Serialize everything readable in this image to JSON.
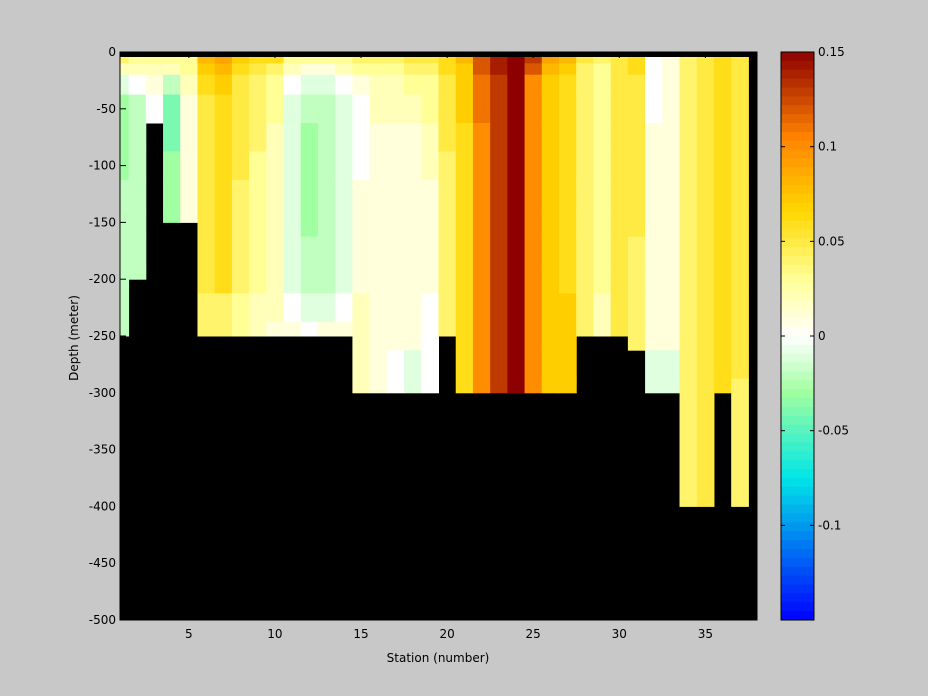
{
  "chart_data": {
    "type": "heatmap",
    "xlabel": "Station (number)",
    "ylabel": "Depth (meter)",
    "xlim": [
      1,
      38
    ],
    "ylim": [
      -500,
      0
    ],
    "xticks": [
      5,
      10,
      15,
      20,
      25,
      30,
      35
    ],
    "yticks": [
      0,
      -50,
      -100,
      -150,
      -200,
      -250,
      -300,
      -350,
      -400,
      -450,
      -500
    ],
    "depth_bins": [
      -5,
      -15,
      -25,
      -50,
      -75,
      -100,
      -125,
      -150,
      -175,
      -200,
      -225,
      -250,
      -275,
      -300,
      -325,
      -350,
      -375,
      -400
    ],
    "colorbar": {
      "clim": [
        -0.15,
        0.15
      ],
      "ticks": [
        0.15,
        0.1,
        0.05,
        0,
        -0.05,
        -0.1
      ],
      "colormap": "blue-cyan-white-yellow-red"
    },
    "bathymetry_color": "#000000",
    "bottom_depth_by_station": [
      -250,
      -200,
      -75,
      -150,
      -150,
      -250,
      -250,
      -250,
      -250,
      -250,
      -250,
      -250,
      -250,
      -250,
      -300,
      -300,
      -300,
      -300,
      -300,
      -250,
      -300,
      -300,
      -300,
      -300,
      -300,
      -300,
      -300,
      -250,
      -250,
      -250,
      -300,
      -300,
      -300,
      -400,
      -400,
      -300,
      -400
    ],
    "values_by_station": [
      [
        0.04,
        0.02,
        -0.01,
        -0.03,
        -0.03,
        -0.03,
        -0.02,
        -0.02,
        -0.02,
        -0.02,
        -0.02,
        -0.02
      ],
      [
        0.03,
        0.02,
        0.0,
        -0.02,
        -0.02,
        -0.02,
        -0.02,
        -0.02,
        -0.02,
        -0.02,
        -0.02
      ],
      [
        0.03,
        0.02,
        0.01,
        0.0
      ],
      [
        0.03,
        0.02,
        -0.02,
        -0.04,
        -0.04,
        -0.03,
        -0.03,
        -0.03
      ],
      [
        0.03,
        0.03,
        0.02,
        0.01,
        0.01,
        0.01,
        0.01,
        0.01
      ],
      [
        0.08,
        0.07,
        0.06,
        0.05,
        0.05,
        0.05,
        0.05,
        0.05,
        0.05,
        0.05,
        0.04,
        0.04
      ],
      [
        0.09,
        0.08,
        0.07,
        0.06,
        0.06,
        0.06,
        0.06,
        0.06,
        0.06,
        0.06,
        0.04,
        0.04
      ],
      [
        0.07,
        0.06,
        0.05,
        0.05,
        0.05,
        0.05,
        0.04,
        0.04,
        0.04,
        0.04,
        0.03,
        0.03
      ],
      [
        0.06,
        0.05,
        0.04,
        0.04,
        0.04,
        0.03,
        0.03,
        0.03,
        0.03,
        0.03,
        0.02,
        0.02
      ],
      [
        0.06,
        0.04,
        0.03,
        0.03,
        0.02,
        0.02,
        0.02,
        0.02,
        0.02,
        0.02,
        0.02,
        0.01
      ],
      [
        0.03,
        0.02,
        0.0,
        -0.01,
        -0.01,
        -0.01,
        -0.01,
        -0.01,
        -0.01,
        -0.01,
        0.0,
        0.01
      ],
      [
        0.03,
        0.01,
        -0.01,
        -0.02,
        -0.03,
        -0.03,
        -0.03,
        -0.03,
        -0.02,
        -0.02,
        -0.01,
        0.0
      ],
      [
        0.03,
        0.01,
        -0.01,
        -0.02,
        -0.02,
        -0.02,
        -0.02,
        -0.02,
        -0.02,
        -0.02,
        -0.01,
        0.01
      ],
      [
        0.03,
        0.02,
        0.0,
        -0.01,
        -0.01,
        -0.01,
        -0.01,
        -0.01,
        -0.01,
        -0.01,
        0.0,
        0.01
      ],
      [
        0.04,
        0.03,
        0.01,
        0.0,
        0.0,
        0.0,
        0.01,
        0.01,
        0.01,
        0.01,
        0.02,
        0.02,
        0.02,
        0.02
      ],
      [
        0.04,
        0.03,
        0.02,
        0.02,
        0.01,
        0.01,
        0.01,
        0.01,
        0.01,
        0.01,
        0.01,
        0.01,
        0.01,
        0.01
      ],
      [
        0.04,
        0.03,
        0.02,
        0.02,
        0.01,
        0.01,
        0.01,
        0.01,
        0.01,
        0.01,
        0.01,
        0.01,
        0.0,
        0.0
      ],
      [
        0.05,
        0.04,
        0.03,
        0.02,
        0.01,
        0.01,
        0.01,
        0.01,
        0.01,
        0.01,
        0.01,
        0.01,
        -0.01,
        -0.01
      ],
      [
        0.05,
        0.04,
        0.03,
        0.03,
        0.02,
        0.02,
        0.01,
        0.01,
        0.01,
        0.01,
        0.0,
        0.0,
        0.0,
        0.0
      ],
      [
        0.06,
        0.06,
        0.05,
        0.05,
        0.05,
        0.04,
        0.04,
        0.04,
        0.04,
        0.04,
        0.04,
        0.04
      ],
      [
        0.08,
        0.07,
        0.07,
        0.07,
        0.06,
        0.06,
        0.06,
        0.06,
        0.06,
        0.06,
        0.06,
        0.06,
        0.06,
        0.06
      ],
      [
        0.12,
        0.12,
        0.11,
        0.11,
        0.1,
        0.1,
        0.1,
        0.1,
        0.1,
        0.1,
        0.1,
        0.1,
        0.1,
        0.1
      ],
      [
        0.14,
        0.14,
        0.13,
        0.13,
        0.13,
        0.13,
        0.13,
        0.13,
        0.13,
        0.13,
        0.13,
        0.13,
        0.13,
        0.13
      ],
      [
        0.15,
        0.15,
        0.15,
        0.15,
        0.15,
        0.15,
        0.15,
        0.15,
        0.15,
        0.15,
        0.15,
        0.15,
        0.15,
        0.15
      ],
      [
        0.13,
        0.12,
        0.1,
        0.1,
        0.1,
        0.1,
        0.1,
        0.1,
        0.1,
        0.1,
        0.1,
        0.1,
        0.1,
        0.1
      ],
      [
        0.09,
        0.08,
        0.07,
        0.07,
        0.07,
        0.07,
        0.07,
        0.07,
        0.07,
        0.07,
        0.07,
        0.07,
        0.07,
        0.07
      ],
      [
        0.08,
        0.07,
        0.06,
        0.06,
        0.06,
        0.06,
        0.06,
        0.06,
        0.06,
        0.06,
        0.07,
        0.07,
        0.07,
        0.07
      ],
      [
        0.05,
        0.04,
        0.04,
        0.04,
        0.04,
        0.04,
        0.04,
        0.04,
        0.04,
        0.04,
        0.04,
        0.04,
        0.03,
        0.03
      ],
      [
        0.04,
        0.03,
        0.03,
        0.03,
        0.03,
        0.03,
        0.03,
        0.03,
        0.03,
        0.03,
        0.02,
        0.02
      ],
      [
        0.05,
        0.05,
        0.05,
        0.05,
        0.05,
        0.05,
        0.05,
        0.05,
        0.05,
        0.05,
        0.05,
        0.05
      ],
      [
        0.06,
        0.06,
        0.05,
        0.05,
        0.05,
        0.05,
        0.05,
        0.05,
        0.04,
        0.04,
        0.04,
        0.04
      ],
      [
        0.0,
        0.0,
        0.0,
        0.0,
        0.01,
        0.01,
        0.01,
        0.01,
        0.01,
        0.01,
        0.01,
        0.01,
        -0.01,
        -0.01
      ],
      [
        0.01,
        0.01,
        0.01,
        0.01,
        0.01,
        0.01,
        0.01,
        0.01,
        0.01,
        0.01,
        0.01,
        0.01,
        -0.01,
        -0.01
      ],
      [
        0.04,
        0.04,
        0.04,
        0.04,
        0.04,
        0.04,
        0.04,
        0.04,
        0.04,
        0.04,
        0.04,
        0.04,
        0.04,
        0.04,
        0.04,
        0.04,
        0.04,
        0.04
      ],
      [
        0.05,
        0.05,
        0.05,
        0.05,
        0.05,
        0.05,
        0.05,
        0.05,
        0.05,
        0.05,
        0.05,
        0.05,
        0.05,
        0.05,
        0.05,
        0.05,
        0.05,
        0.05
      ],
      [
        0.06,
        0.06,
        0.06,
        0.06,
        0.06,
        0.06,
        0.06,
        0.06,
        0.06,
        0.06,
        0.06,
        0.06,
        0.06,
        0.06
      ],
      [
        0.05,
        0.05,
        0.05,
        0.05,
        0.05,
        0.05,
        0.05,
        0.05,
        0.05,
        0.05,
        0.05,
        0.05,
        0.05,
        0.04,
        0.04,
        0.04,
        0.04,
        0.04
      ]
    ]
  }
}
